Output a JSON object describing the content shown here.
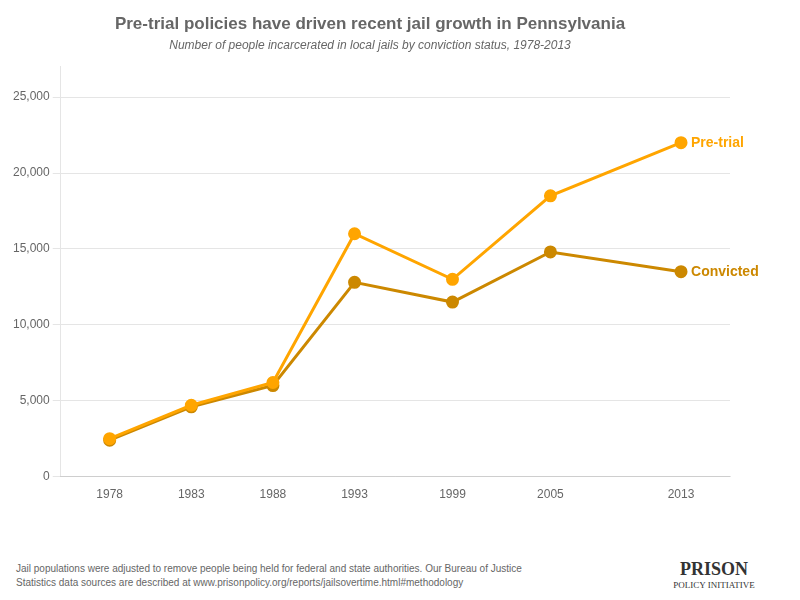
{
  "chart_data": {
    "type": "line",
    "title": "Pre-trial policies have driven recent jail growth in Pennsylvania",
    "subtitle": "Number of people incarcerated in local jails by conviction status, 1978-2013",
    "annotations": [
      "Jail populations were adjusted to remove people being held for federal and state authorities. Our Bureau of Justice",
      "Statistics data sources are described at www.prisonpolicy.org/reports/jailsovertime.html#methodology",
      "PRISON",
      "POLICY INITIATIVE"
    ],
    "x": [
      1978,
      1983,
      1988,
      1993,
      1999,
      2005,
      2013
    ],
    "series": [
      {
        "name": "Pre-trial",
        "color": "#FFA500",
        "values": [
          2500,
          4700,
          6200,
          16000,
          13000,
          18500,
          22000
        ]
      },
      {
        "name": "Convicted",
        "color": "#CC8800",
        "values": [
          2400,
          4600,
          6000,
          12800,
          11500,
          14800,
          13500
        ]
      }
    ],
    "marker": "circle",
    "xlim": [
      1975,
      2016
    ],
    "xticks": [
      1978,
      1983,
      1988,
      1993,
      1999,
      2005,
      2013
    ],
    "ylim": [
      0,
      27000
    ],
    "yticks": [
      0,
      {
        "value": 5000,
        "label": "5,000"
      },
      {
        "value": 10000,
        "label": "10,000"
      },
      {
        "value": 15000,
        "label": "15,000"
      },
      {
        "value": 20000,
        "label": "20,000"
      },
      {
        "value": 25000,
        "label": "25,000"
      }
    ],
    "grid": true
  }
}
